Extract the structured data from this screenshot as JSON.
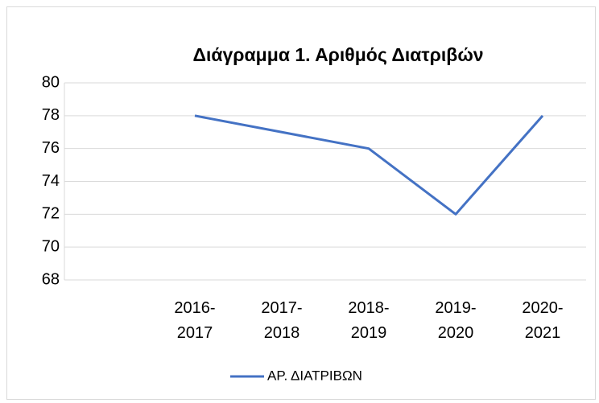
{
  "chart_data": {
    "type": "line",
    "title": "Διάγραμμα 1. Αριθμός Διατριβών",
    "categories": [
      null,
      "2016-2017",
      "2017-2018",
      "2018-2019",
      "2019-2020",
      "2020-2021"
    ],
    "series": [
      {
        "name": "ΑΡ. ΔΙΑΤΡΙΒΩΝ",
        "color": "#4472c4",
        "values": [
          null,
          78,
          77,
          76,
          72,
          78
        ]
      }
    ],
    "ylim": [
      68,
      80
    ],
    "yticks": [
      68,
      70,
      72,
      74,
      76,
      78,
      80
    ],
    "grid": true,
    "legend": "bottom"
  }
}
